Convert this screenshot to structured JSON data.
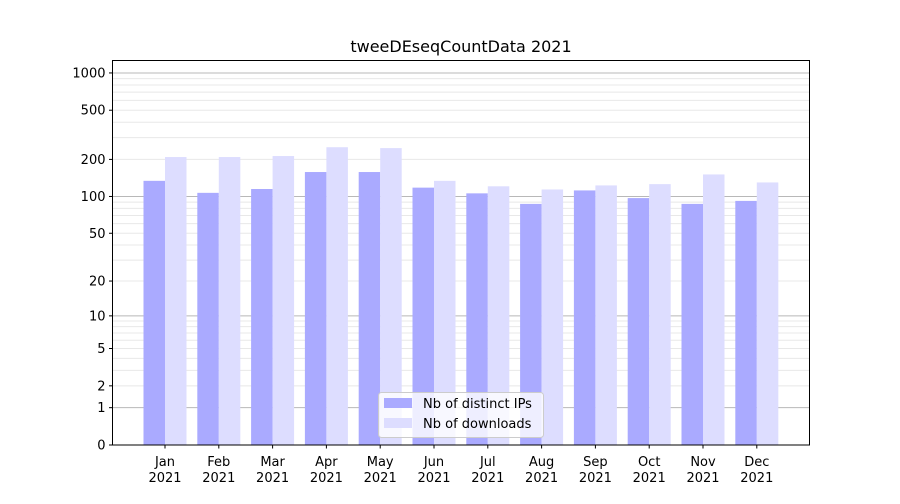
{
  "chart_data": {
    "type": "bar",
    "title": "tweeDEseqCountData 2021",
    "xlabel": "",
    "ylabel": "",
    "yscale": "log10(1+y)",
    "ylim": [
      0,
      1200
    ],
    "yticks": [
      0,
      1,
      2,
      5,
      10,
      20,
      50,
      100,
      200,
      500,
      1000
    ],
    "grid": true,
    "legend_position": "bottom-center",
    "categories": [
      "Jan\n2021",
      "Feb\n2021",
      "Mar\n2021",
      "Apr\n2021",
      "May\n2021",
      "Jun\n2021",
      "Jul\n2021",
      "Aug\n2021",
      "Sep\n2021",
      "Oct\n2021",
      "Nov\n2021",
      "Dec\n2021"
    ],
    "series": [
      {
        "name": "Nb of distinct IPs",
        "color": "#aaaaff",
        "values": [
          134,
          107,
          115,
          158,
          158,
          118,
          106,
          87,
          112,
          97,
          87,
          92
        ]
      },
      {
        "name": "Nb of downloads",
        "color": "#ddddff",
        "values": [
          209,
          209,
          213,
          251,
          247,
          134,
          121,
          114,
          123,
          126,
          151,
          130
        ]
      }
    ]
  }
}
